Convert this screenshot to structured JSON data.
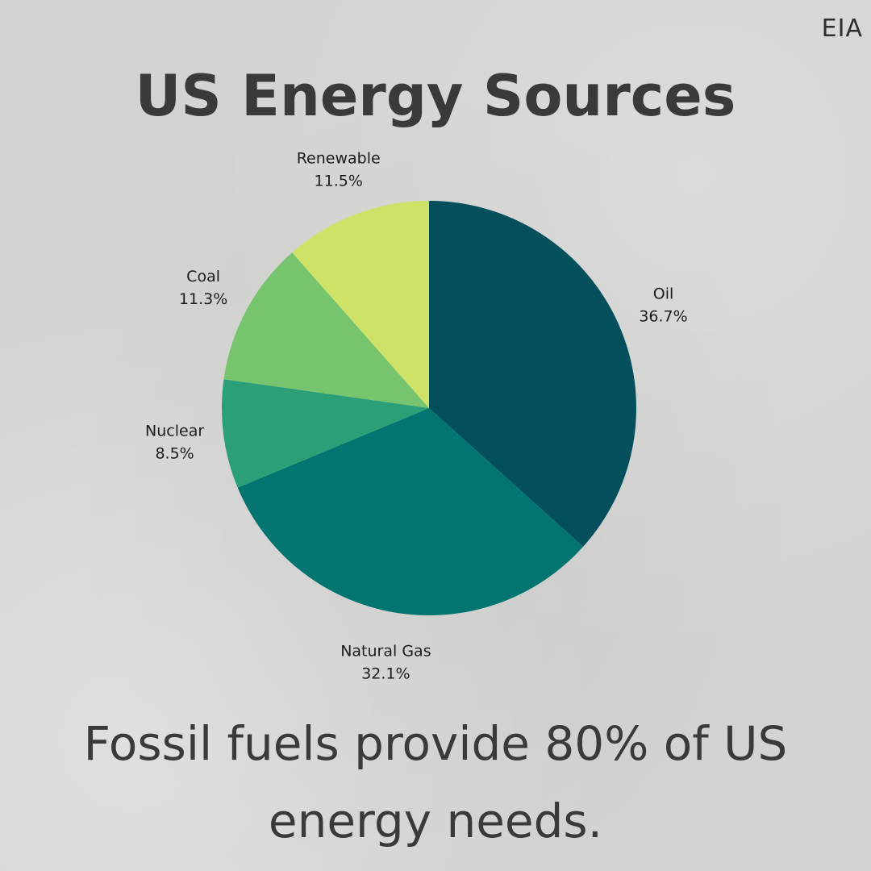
{
  "source_label": "EIA",
  "caption": "Fossil fuels provide 80% of US energy needs.",
  "chart_data": {
    "type": "pie",
    "title": "US Energy Sources",
    "start_angle_deg": 0,
    "direction": "clockwise",
    "slices": [
      {
        "label": "Oil",
        "value": 36.7,
        "value_label": "36.7%",
        "color": "#03505c"
      },
      {
        "label": "Natural Gas",
        "value": 32.1,
        "value_label": "32.1%",
        "color": "#037570"
      },
      {
        "label": "Nuclear",
        "value": 8.5,
        "value_label": "8.5%",
        "color": "#2a9f78"
      },
      {
        "label": "Coal",
        "value": 11.3,
        "value_label": "11.3%",
        "color": "#76c46e"
      },
      {
        "label": "Renewable",
        "value": 11.5,
        "value_label": "11.5%",
        "color": "#cde267"
      }
    ]
  }
}
